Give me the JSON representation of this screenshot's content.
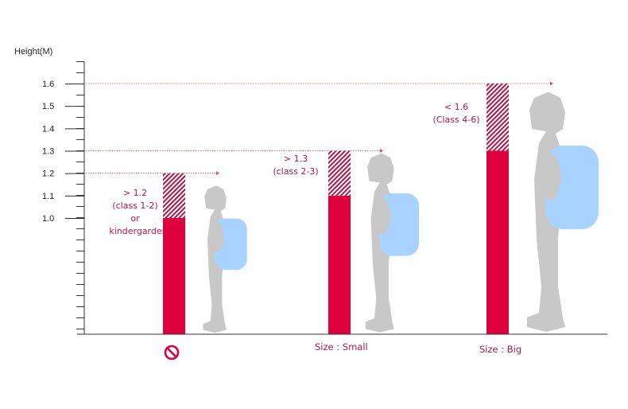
{
  "chart_data": {
    "type": "bar",
    "ylabel": "Height(M)",
    "ylim": [
      0,
      1.7
    ],
    "yticks": [
      "1.6",
      "1.5",
      "1.4",
      "1.3",
      "1.2",
      "1.1",
      "1.0"
    ],
    "ytick_values": [
      1.6,
      1.5,
      1.4,
      1.3,
      1.2,
      1.1,
      1.0
    ],
    "bars": [
      {
        "solid_top": 1.0,
        "hatched_top": 1.2,
        "annotation": [
          "> 1.2",
          "(class 1-2)",
          "or",
          "kindergarden"
        ],
        "size_label": "",
        "icon": "no-entry-icon"
      },
      {
        "solid_top": 1.1,
        "hatched_top": 1.3,
        "annotation": [
          "> 1.3",
          "(class 2-3)"
        ],
        "size_label": "Size : Small"
      },
      {
        "solid_top": 1.3,
        "hatched_top": 1.6,
        "annotation": [
          "< 1.6",
          "(Class 4-6)"
        ],
        "size_label": "Size :  Big"
      }
    ],
    "colors": {
      "bar": "#e0003e",
      "hatch": "#b0154a",
      "guide": "#d9534f",
      "child": "#c8c8c8",
      "backpack": "#a8d2ff"
    }
  }
}
